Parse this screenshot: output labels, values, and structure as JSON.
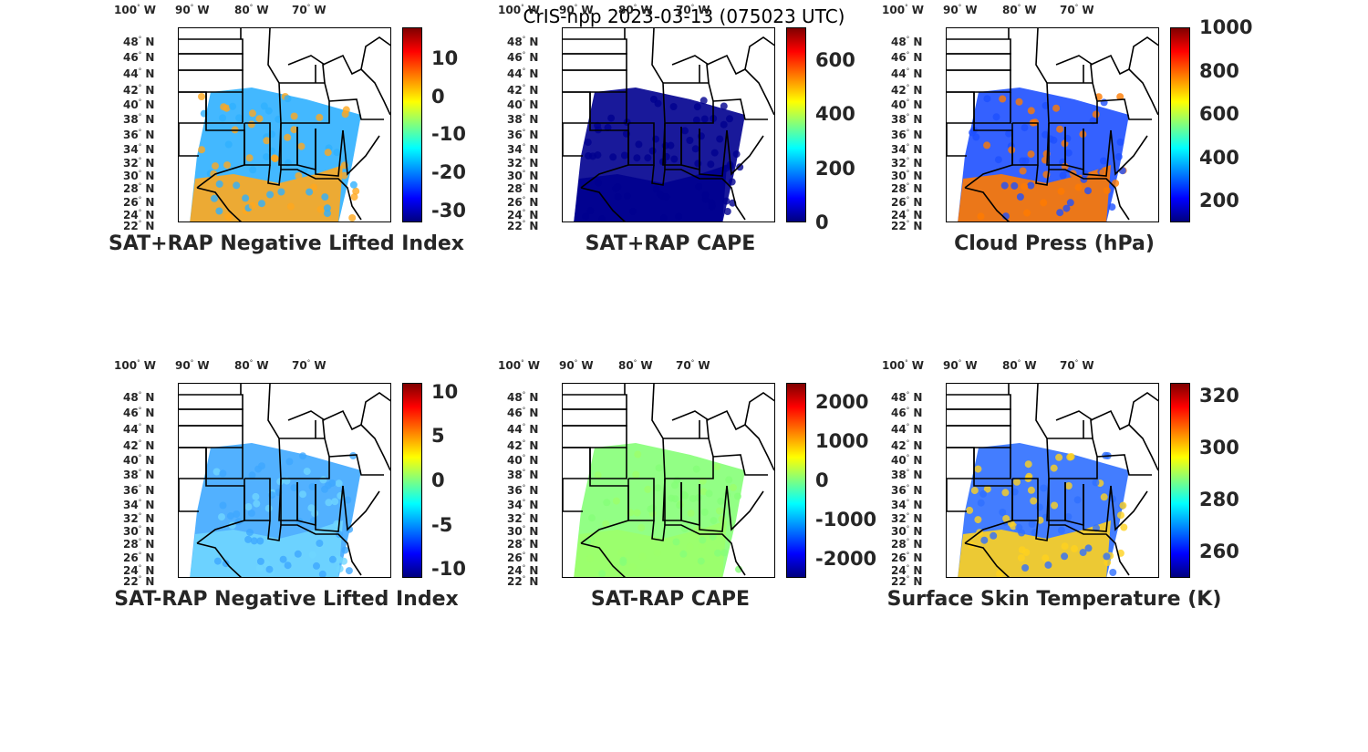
{
  "title": "CrIS-npp 2023-03-13 (075023 UTC)",
  "lon_labels": [
    "100",
    "90",
    "80",
    "70"
  ],
  "lon_suffix": "W",
  "lat_labels": [
    "48",
    "46",
    "44",
    "42",
    "40",
    "38",
    "36",
    "34",
    "32",
    "30",
    "28",
    "26",
    "24",
    "22"
  ],
  "lat_suffix": "N",
  "degree_symbol": "°",
  "panels": [
    {
      "title": "SAT+RAP Negative Lifted Index",
      "colorbar_ticks": [
        "10",
        "0",
        "-10",
        "-20",
        "-30"
      ],
      "colorbar_range": [
        -33,
        18
      ],
      "dominant_color": "#2fb0ff",
      "south_color": "#ffa81e"
    },
    {
      "title": "SAT+RAP CAPE",
      "colorbar_ticks": [
        "600",
        "400",
        "200",
        "0"
      ],
      "colorbar_range": [
        0,
        720
      ],
      "dominant_color": "#00008f",
      "south_color": "#00008f"
    },
    {
      "title": "Cloud Press (hPa)",
      "colorbar_ticks": [
        "1000",
        "800",
        "600",
        "400",
        "200"
      ],
      "colorbar_range": [
        100,
        1000
      ],
      "dominant_color": "#1e50ff",
      "south_color": "#ff7a00"
    },
    {
      "title": "SAT-RAP Negative Lifted Index",
      "colorbar_ticks": [
        "10",
        "5",
        "0",
        "-5",
        "-10"
      ],
      "colorbar_range": [
        -11,
        11
      ],
      "dominant_color": "#3fa8ff",
      "south_color": "#6fd6ff"
    },
    {
      "title": "SAT-RAP CAPE",
      "colorbar_ticks": [
        "2000",
        "1000",
        "0",
        "-1000",
        "-2000"
      ],
      "colorbar_range": [
        -2500,
        2500
      ],
      "dominant_color": "#86ff78",
      "south_color": "#9cff6a"
    },
    {
      "title": "Surface Skin Temperature (K)",
      "colorbar_ticks": [
        "320",
        "300",
        "280",
        "260"
      ],
      "colorbar_range": [
        250,
        325
      ],
      "dominant_color": "#2f6fff",
      "south_color": "#ffd21e"
    }
  ]
}
